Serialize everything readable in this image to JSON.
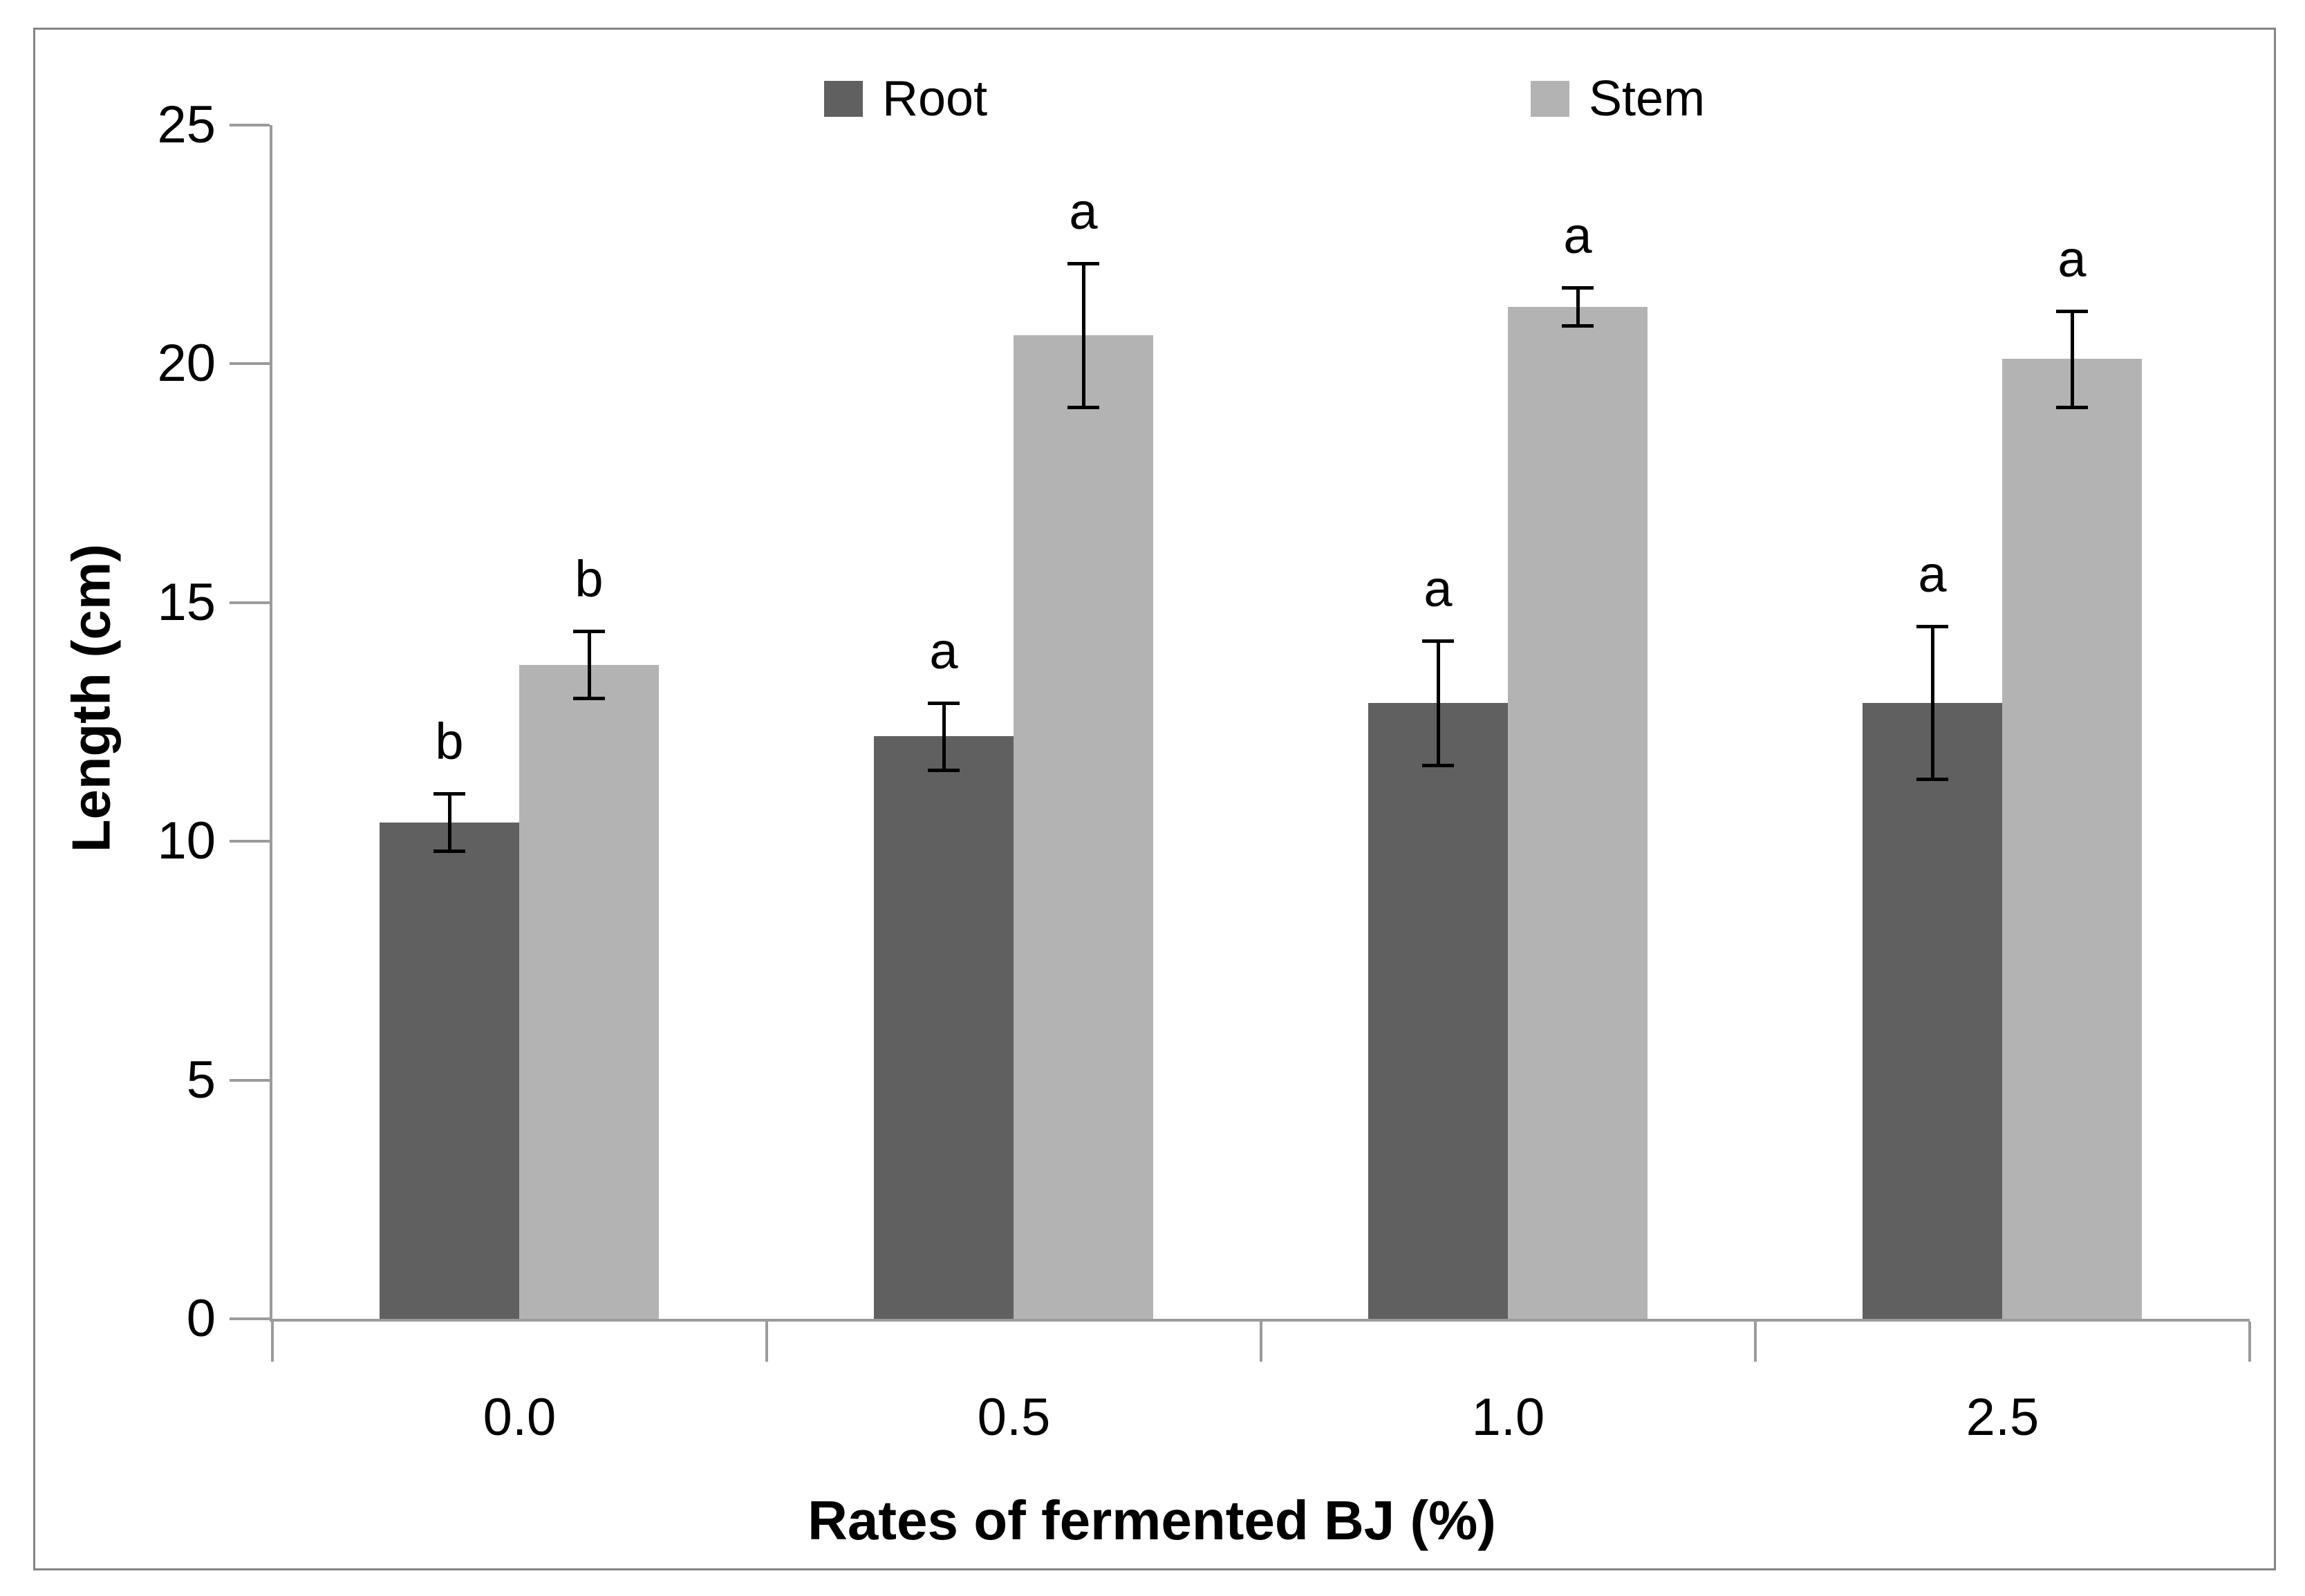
{
  "chart_data": {
    "type": "bar",
    "title": "",
    "xlabel": "Rates of fermented BJ (%)",
    "ylabel": "Length (cm)",
    "categories": [
      "0.0",
      "0.5",
      "1.0",
      "2.5"
    ],
    "series": [
      {
        "name": "Root",
        "color": "#606060",
        "values": [
          10.4,
          12.2,
          12.9,
          12.9
        ],
        "errors": [
          0.6,
          0.7,
          1.3,
          1.6
        ],
        "letters": [
          "b",
          "a",
          "a",
          "a"
        ]
      },
      {
        "name": "Stem",
        "color": "#b3b3b3",
        "values": [
          13.7,
          20.6,
          21.2,
          20.1
        ],
        "errors": [
          0.7,
          1.5,
          0.4,
          1.0
        ],
        "letters": [
          "b",
          "a",
          "a",
          "a"
        ]
      }
    ],
    "ylim": [
      0,
      25
    ],
    "yticks": [
      0,
      5,
      10,
      15,
      20,
      25
    ],
    "grid": false,
    "legend_position": "top-inside",
    "error_bar_color": "#000000",
    "axis_color": "#9b9b9b",
    "frame_color": "#848484",
    "significance_note_values": {
      "Root": [
        "10.4±0.6 b",
        "12.2±0.7 a",
        "12.9±1.3 a",
        "12.9±1.6 a"
      ],
      "Stem": [
        "13.7±0.7 b",
        "20.6±1.5 a",
        "21.2±0.4 a",
        "20.1±1.0 a"
      ]
    }
  }
}
